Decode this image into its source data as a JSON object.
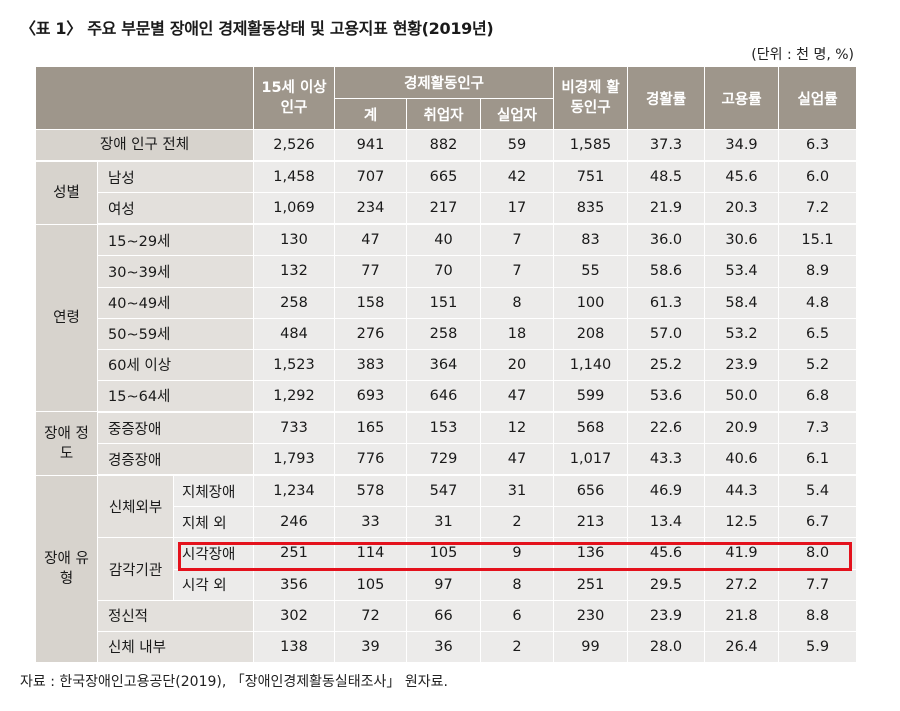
{
  "title": "〈표 1〉 주요 부문별 장애인 경제활동상태 및 고용지표 현황(2019년)",
  "unit": "(단위 : 천 명, %)",
  "headers": {
    "pop15": "15세 이상 인구",
    "econ_active": "경제활동인구",
    "total": "계",
    "employed": "취업자",
    "unemployed": "실업자",
    "non_active": "비경제 활동인구",
    "participation_rate": "경활률",
    "employment_rate": "고용률",
    "unemployment_rate": "실업률"
  },
  "categories": {
    "all": "장애 인구 전체",
    "sex": "성별",
    "age": "연령",
    "severity": "장애 정도",
    "type": "장애 유형",
    "physical_external": "신체외부",
    "sensory": "감각기관"
  },
  "rows": [
    {
      "label": "장애 인구 전체",
      "v": [
        "2,526",
        "941",
        "882",
        "59",
        "1,585",
        "37.3",
        "34.9",
        "6.3"
      ]
    },
    {
      "label": "남성",
      "v": [
        "1,458",
        "707",
        "665",
        "42",
        "751",
        "48.5",
        "45.6",
        "6.0"
      ]
    },
    {
      "label": "여성",
      "v": [
        "1,069",
        "234",
        "217",
        "17",
        "835",
        "21.9",
        "20.3",
        "7.2"
      ]
    },
    {
      "label": "15~29세",
      "v": [
        "130",
        "47",
        "40",
        "7",
        "83",
        "36.0",
        "30.6",
        "15.1"
      ]
    },
    {
      "label": "30~39세",
      "v": [
        "132",
        "77",
        "70",
        "7",
        "55",
        "58.6",
        "53.4",
        "8.9"
      ]
    },
    {
      "label": "40~49세",
      "v": [
        "258",
        "158",
        "151",
        "8",
        "100",
        "61.3",
        "58.4",
        "4.8"
      ]
    },
    {
      "label": "50~59세",
      "v": [
        "484",
        "276",
        "258",
        "18",
        "208",
        "57.0",
        "53.2",
        "6.5"
      ]
    },
    {
      "label": "60세 이상",
      "v": [
        "1,523",
        "383",
        "364",
        "20",
        "1,140",
        "25.2",
        "23.9",
        "5.2"
      ]
    },
    {
      "label": "15~64세",
      "v": [
        "1,292",
        "693",
        "646",
        "47",
        "599",
        "53.6",
        "50.0",
        "6.8"
      ]
    },
    {
      "label": "중증장애",
      "v": [
        "733",
        "165",
        "153",
        "12",
        "568",
        "22.6",
        "20.9",
        "7.3"
      ]
    },
    {
      "label": "경증장애",
      "v": [
        "1,793",
        "776",
        "729",
        "47",
        "1,017",
        "43.3",
        "40.6",
        "6.1"
      ]
    },
    {
      "label": "지체장애",
      "v": [
        "1,234",
        "578",
        "547",
        "31",
        "656",
        "46.9",
        "44.3",
        "5.4"
      ]
    },
    {
      "label": "지체 외",
      "v": [
        "246",
        "33",
        "31",
        "2",
        "213",
        "13.4",
        "12.5",
        "6.7"
      ]
    },
    {
      "label": "시각장애",
      "v": [
        "251",
        "114",
        "105",
        "9",
        "136",
        "45.6",
        "41.9",
        "8.0"
      ]
    },
    {
      "label": "시각 외",
      "v": [
        "356",
        "105",
        "97",
        "8",
        "251",
        "29.5",
        "27.2",
        "7.7"
      ]
    },
    {
      "label": "정신적",
      "v": [
        "302",
        "72",
        "66",
        "6",
        "230",
        "23.9",
        "21.8",
        "8.8"
      ]
    },
    {
      "label": "신체 내부",
      "v": [
        "138",
        "39",
        "36",
        "2",
        "99",
        "28.0",
        "26.4",
        "5.9"
      ]
    }
  ],
  "highlight_color": "#e4111c",
  "header_color": "#9e968b",
  "source": "자료 : 한국장애인고용공단(2019), 「장애인경제활동실태조사」 원자료."
}
